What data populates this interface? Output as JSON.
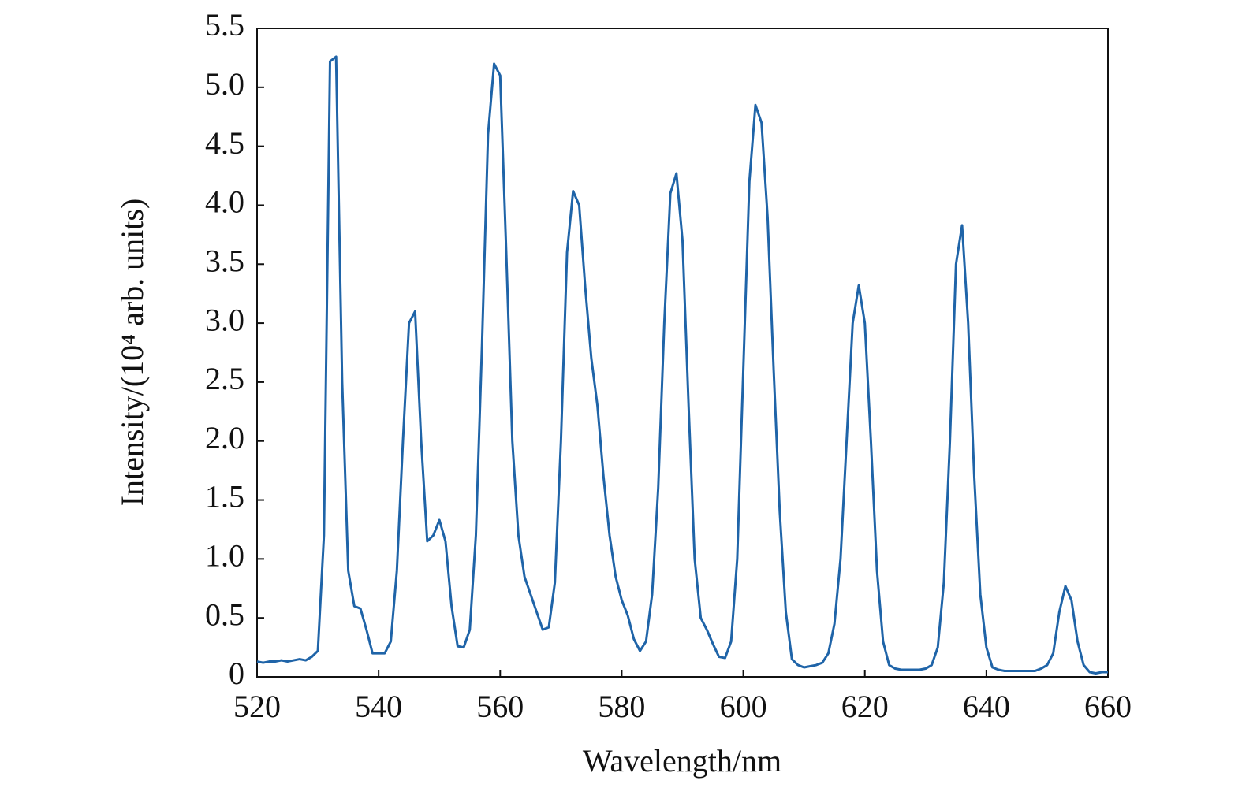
{
  "chart_data": {
    "type": "line",
    "xlabel": "Wavelength/nm",
    "ylabel": "Intensity/(10⁴ arb. units)",
    "xlim": [
      520,
      660
    ],
    "xticks": [
      520,
      540,
      560,
      580,
      600,
      620,
      640,
      660
    ],
    "ylim": [
      0,
      5.5
    ],
    "yticks": [
      0,
      0.5,
      {
        "value": 1,
        "label": "1.0"
      },
      1.5,
      {
        "value": 2,
        "label": "2.0"
      },
      2.5,
      {
        "value": 3,
        "label": "3.0"
      },
      3.5,
      {
        "value": 4,
        "label": "4.0"
      },
      4.5,
      {
        "value": 5,
        "label": "5.0"
      },
      5.5
    ],
    "x": [
      520,
      521,
      522,
      523,
      524,
      525,
      526,
      527,
      528,
      529,
      530,
      531,
      532,
      533,
      534,
      535,
      536,
      537,
      538,
      539,
      540,
      541,
      542,
      543,
      544,
      545,
      546,
      547,
      548,
      549,
      550,
      551,
      552,
      553,
      554,
      555,
      556,
      557,
      558,
      559,
      560,
      561,
      562,
      563,
      564,
      565,
      566,
      567,
      568,
      569,
      570,
      571,
      572,
      573,
      574,
      575,
      576,
      577,
      578,
      579,
      580,
      581,
      582,
      583,
      584,
      585,
      586,
      587,
      588,
      589,
      590,
      591,
      592,
      593,
      594,
      595,
      596,
      597,
      598,
      599,
      600,
      601,
      602,
      603,
      604,
      605,
      606,
      607,
      608,
      609,
      610,
      611,
      612,
      613,
      614,
      615,
      616,
      617,
      618,
      619,
      620,
      621,
      622,
      623,
      624,
      625,
      626,
      627,
      628,
      629,
      630,
      631,
      632,
      633,
      634,
      635,
      636,
      637,
      638,
      639,
      640,
      641,
      642,
      643,
      644,
      645,
      646,
      647,
      648,
      649,
      650,
      651,
      652,
      653,
      654,
      655,
      656,
      657,
      658,
      659,
      660
    ],
    "series": [
      {
        "color": "#1f64a8",
        "values": [
          0.13,
          0.12,
          0.13,
          0.13,
          0.14,
          0.13,
          0.14,
          0.15,
          0.14,
          0.17,
          0.22,
          1.2,
          5.22,
          5.26,
          2.5,
          0.9,
          0.6,
          0.58,
          0.4,
          0.2,
          0.2,
          0.2,
          0.3,
          0.9,
          2.0,
          3.0,
          3.1,
          2.0,
          1.15,
          1.2,
          1.33,
          1.15,
          0.6,
          0.26,
          0.25,
          0.4,
          1.2,
          2.8,
          4.6,
          5.2,
          5.1,
          3.6,
          2.0,
          1.2,
          0.85,
          0.7,
          0.55,
          0.4,
          0.42,
          0.8,
          2.0,
          3.6,
          4.12,
          4.0,
          3.3,
          2.7,
          2.3,
          1.7,
          1.2,
          0.85,
          0.65,
          0.52,
          0.32,
          0.22,
          0.3,
          0.7,
          1.6,
          3.0,
          4.1,
          4.27,
          3.7,
          2.3,
          1.0,
          0.5,
          0.4,
          0.28,
          0.17,
          0.16,
          0.3,
          1.0,
          2.6,
          4.2,
          4.85,
          4.7,
          3.9,
          2.6,
          1.4,
          0.55,
          0.15,
          0.1,
          0.08,
          0.09,
          0.1,
          0.12,
          0.2,
          0.45,
          1.0,
          2.0,
          3.0,
          3.32,
          3.0,
          2.0,
          0.9,
          0.3,
          0.1,
          0.07,
          0.06,
          0.06,
          0.06,
          0.06,
          0.07,
          0.1,
          0.25,
          0.8,
          2.0,
          3.5,
          3.83,
          3.0,
          1.7,
          0.7,
          0.25,
          0.08,
          0.06,
          0.05,
          0.05,
          0.05,
          0.05,
          0.05,
          0.05,
          0.07,
          0.1,
          0.2,
          0.55,
          0.77,
          0.65,
          0.3,
          0.1,
          0.04,
          0.03,
          0.04,
          0.04
        ]
      }
    ]
  }
}
